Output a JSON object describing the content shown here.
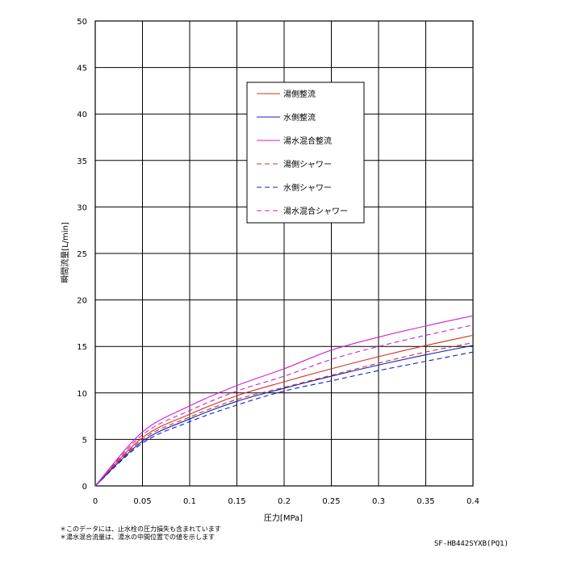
{
  "chart_data": {
    "type": "line",
    "title": "",
    "xlabel": "圧力[MPa]",
    "ylabel": "瞬間流量[L/min]",
    "xlim": [
      0,
      0.4
    ],
    "ylim": [
      0,
      50
    ],
    "x_ticks": [
      "0",
      "0.05",
      "0.1",
      "0.15",
      "0.2",
      "0.25",
      "0.3",
      "0.35",
      "0.4"
    ],
    "y_ticks": [
      "0",
      "5",
      "10",
      "15",
      "20",
      "25",
      "30",
      "35",
      "40",
      "45",
      "50"
    ],
    "grid": true,
    "legend_position": "top-center",
    "x": [
      0,
      0.05,
      0.1,
      0.15,
      0.2,
      0.25,
      0.3,
      0.35,
      0.4
    ],
    "series": [
      {
        "name": "湯側整流",
        "color": "#d03020",
        "dash": false,
        "values": [
          0,
          5.2,
          7.7,
          9.7,
          11.2,
          12.6,
          13.9,
          15.1,
          16.2
        ]
      },
      {
        "name": "水側整流",
        "color": "#1020c0",
        "dash": false,
        "values": [
          0,
          4.8,
          7.2,
          9.1,
          10.5,
          11.8,
          13.0,
          14.1,
          15.1
        ]
      },
      {
        "name": "湯水混合整流",
        "color": "#cc22cc",
        "dash": false,
        "values": [
          0,
          5.8,
          8.6,
          10.8,
          12.6,
          14.6,
          16.0,
          17.2,
          18.3
        ]
      },
      {
        "name": "湯側シャワー",
        "color": "#d03020",
        "dash": true,
        "values": [
          0,
          5.0,
          7.4,
          9.3,
          10.6,
          11.9,
          13.2,
          14.4,
          15.4
        ]
      },
      {
        "name": "水側シャワー",
        "color": "#1020c0",
        "dash": true,
        "values": [
          0,
          4.6,
          6.9,
          8.7,
          10.2,
          11.3,
          12.4,
          13.4,
          14.4
        ]
      },
      {
        "name": "湯水混合シャワー",
        "color": "#cc22cc",
        "dash": true,
        "values": [
          0,
          5.5,
          8.1,
          10.2,
          11.8,
          13.6,
          15.0,
          16.2,
          17.3
        ]
      }
    ]
  },
  "notes": [
    "＊このデータには、止水栓の圧力損失も含まれています",
    "＊湯水混合流量は、湯水の中間位置での値を示します"
  ],
  "model": "SF-HB442SYXB(PQ1)"
}
